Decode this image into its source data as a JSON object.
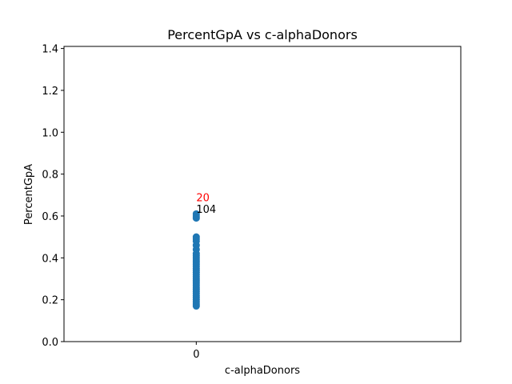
{
  "chart_data": {
    "type": "scatter",
    "title": "PercentGpA vs c-alphaDonors",
    "xlabel": "c-alphaDonors",
    "ylabel": "PercentGpA",
    "xlim": [
      -0.5,
      1.0
    ],
    "ylim": [
      0.0,
      1.41
    ],
    "xticks": [
      0
    ],
    "yticks": [
      0.0,
      0.2,
      0.4,
      0.6,
      0.8,
      1.0,
      1.2,
      1.4
    ],
    "ytick_labels": [
      "0.0",
      "0.2",
      "0.4",
      "0.6",
      "0.8",
      "1.0",
      "1.2",
      "1.4"
    ],
    "xtick_labels": [
      "0"
    ],
    "grid": false,
    "point_color": "#1f77b4",
    "x": [
      0,
      0,
      0,
      0,
      0,
      0,
      0,
      0,
      0,
      0,
      0,
      0,
      0,
      0,
      0,
      0,
      0,
      0,
      0,
      0,
      0,
      0,
      0,
      0,
      0,
      0,
      0,
      0,
      0,
      0,
      0,
      0,
      0,
      0
    ],
    "y": [
      0.61,
      0.6,
      0.59,
      0.5,
      0.49,
      0.48,
      0.46,
      0.44,
      0.42,
      0.41,
      0.4,
      0.39,
      0.38,
      0.37,
      0.36,
      0.35,
      0.34,
      0.33,
      0.32,
      0.31,
      0.3,
      0.29,
      0.28,
      0.27,
      0.26,
      0.25,
      0.24,
      0.22,
      0.21,
      0.2,
      0.19,
      0.18,
      0.17,
      0.23
    ],
    "annotations": [
      {
        "text": "20",
        "x": 0,
        "y": 0.67,
        "color": "#ff0000"
      },
      {
        "text": "104",
        "x": 0,
        "y": 0.615,
        "color": "#000000"
      }
    ]
  }
}
